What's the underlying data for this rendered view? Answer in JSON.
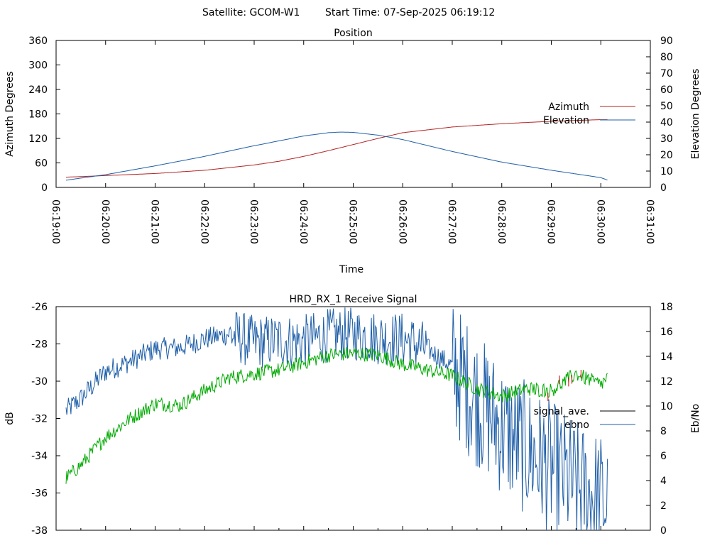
{
  "header": {
    "satellite": "Satellite: GCOM-W1",
    "start_time": "Start Time: 07-Sep-2025 06:19:12"
  },
  "chart_data": [
    {
      "type": "line",
      "title": "Position",
      "xlabel": "Time",
      "ylabel_left": "Azimuth Degrees",
      "ylabel_right": "Elevation Degrees",
      "x_ticks": [
        "06:19:00",
        "06:20:00",
        "06:21:00",
        "06:22:00",
        "06:23:00",
        "06:24:00",
        "06:25:00",
        "06:26:00",
        "06:27:00",
        "06:28:00",
        "06:29:00",
        "06:30:00",
        "06:31:00"
      ],
      "xlim": [
        "06:19:00",
        "06:31:00"
      ],
      "ylim_left": [
        0,
        360
      ],
      "yticks_left": [
        0,
        60,
        120,
        180,
        240,
        300,
        360
      ],
      "ylim_right": [
        0,
        90
      ],
      "yticks_right": [
        0,
        10,
        20,
        30,
        40,
        50,
        60,
        70,
        80,
        90
      ],
      "legend_position": "right",
      "grid": false,
      "series": [
        {
          "name": "Azimuth",
          "axis": "left",
          "color": "#b22222",
          "x": [
            "06:19:12",
            "06:20:00",
            "06:21:00",
            "06:22:00",
            "06:23:00",
            "06:23:30",
            "06:24:00",
            "06:24:30",
            "06:25:00",
            "06:25:30",
            "06:26:00",
            "06:27:00",
            "06:28:00",
            "06:29:00",
            "06:30:00",
            "06:30:08"
          ],
          "y": [
            25,
            29,
            34,
            42,
            55,
            64,
            76,
            90,
            105,
            120,
            134,
            148,
            156,
            162,
            166,
            166
          ]
        },
        {
          "name": "Elevation",
          "axis": "right",
          "color": "#1f5fa8",
          "x": [
            "06:19:12",
            "06:20:00",
            "06:21:00",
            "06:22:00",
            "06:23:00",
            "06:24:00",
            "06:24:30",
            "06:24:45",
            "06:25:00",
            "06:25:30",
            "06:26:00",
            "06:27:00",
            "06:28:00",
            "06:29:00",
            "06:30:00",
            "06:30:08"
          ],
          "y": [
            4.4,
            7.8,
            13.2,
            19.0,
            25.5,
            31.5,
            33.5,
            33.9,
            33.7,
            32.0,
            29.3,
            22.0,
            15.5,
            10.5,
            6.0,
            4.5
          ]
        }
      ]
    },
    {
      "type": "line",
      "title": "HRD_RX_1 Receive Signal",
      "ylabel_left": "dB",
      "ylabel_right": "Eb/No",
      "xlim": [
        "06:19:00",
        "06:31:00"
      ],
      "ylim_left": [
        -38,
        -26
      ],
      "yticks_left": [
        -38,
        -36,
        -34,
        -32,
        -30,
        -28,
        -26
      ],
      "ylim_right": [
        0,
        18
      ],
      "yticks_right": [
        0,
        2,
        4,
        6,
        8,
        10,
        12,
        14,
        16,
        18
      ],
      "legend_position": "right",
      "grid": false,
      "series": [
        {
          "name": "signal_ave.",
          "axis": "left",
          "color": "#00aa00",
          "highlight_color": "#cc0000",
          "x": [
            "06:19:12",
            "06:19:30",
            "06:20:00",
            "06:20:30",
            "06:21:00",
            "06:21:30",
            "06:22:00",
            "06:22:30",
            "06:23:00",
            "06:23:30",
            "06:24:00",
            "06:24:30",
            "06:25:00",
            "06:25:30",
            "06:26:00",
            "06:26:30",
            "06:27:00",
            "06:27:30",
            "06:28:00",
            "06:28:30",
            "06:29:00",
            "06:29:30",
            "06:30:00",
            "06:30:08"
          ],
          "y": [
            -35.2,
            -34.5,
            -33.0,
            -32.0,
            -31.2,
            -31.3,
            -30.5,
            -29.8,
            -29.6,
            -29.4,
            -29.0,
            -28.6,
            -28.5,
            -28.6,
            -29.1,
            -29.4,
            -29.7,
            -30.4,
            -30.8,
            -30.4,
            -30.5,
            -29.6,
            -30.2,
            -29.8
          ]
        },
        {
          "name": "ebno",
          "axis": "right",
          "color": "#1f5fa8",
          "x": [
            "06:19:12",
            "06:19:30",
            "06:20:00",
            "06:20:30",
            "06:21:00",
            "06:21:30",
            "06:22:00",
            "06:22:30",
            "06:23:00",
            "06:23:30",
            "06:24:00",
            "06:24:30",
            "06:25:00",
            "06:25:30",
            "06:26:00",
            "06:26:30",
            "06:27:00",
            "06:27:30",
            "06:28:00",
            "06:28:30",
            "06:29:00",
            "06:29:30",
            "06:30:00",
            "06:30:08"
          ],
          "y": [
            9.6,
            10.6,
            12.8,
            13.6,
            14.6,
            14.7,
            15.4,
            15.8,
            15.1,
            15.3,
            15.2,
            15.7,
            15.8,
            15.5,
            15.4,
            14.6,
            13.2,
            10.5,
            8.2,
            6.5,
            5.0,
            3.5,
            2.5,
            2.0
          ]
        }
      ]
    }
  ],
  "colors": {
    "legend_signal": "#000000",
    "axis": "#000000"
  }
}
